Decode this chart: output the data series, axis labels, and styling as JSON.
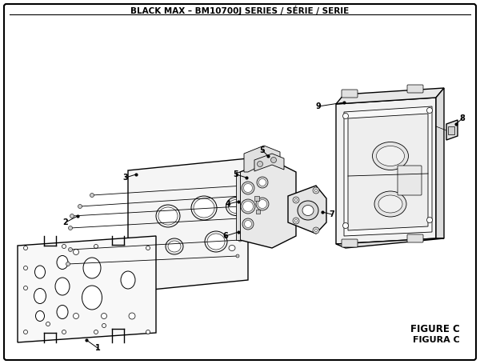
{
  "title": "BLACK MAX – BM10700J SERIES / SÉRIE / SERIE",
  "figure_label": "FIGURE C",
  "figura_label": "FIGURA C",
  "bg_color": "#ffffff",
  "border_color": "#000000",
  "line_color": "#000000",
  "lw_main": 1.0,
  "lw_thin": 0.6,
  "font_title": 7.5,
  "font_label": 7.0,
  "font_figure": 8.5
}
